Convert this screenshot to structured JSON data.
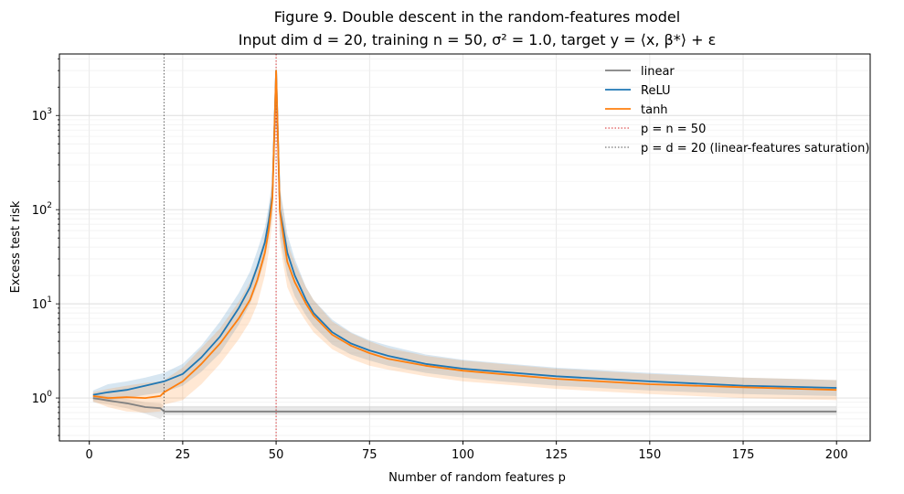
{
  "chart_data": {
    "type": "line",
    "title_line1": "Figure 9.  Double descent in the random-features model",
    "title_line2": "Input dim d = 20, training n = 50, σ² = 1.0, target y = ⟨x, β*⟩ + ε",
    "xlabel": "Number of random features  p",
    "ylabel": "Excess test risk",
    "xlim": [
      -8,
      209
    ],
    "ylim": [
      0.35,
      4500
    ],
    "yscale": "log",
    "grid": true,
    "legend_placement": "upper-right",
    "x_ticks": [
      0,
      25,
      50,
      75,
      100,
      125,
      150,
      175,
      200
    ],
    "y_ticks": [
      {
        "value": 1,
        "base": "10",
        "exp": "0"
      },
      {
        "value": 10,
        "base": "10",
        "exp": "1"
      },
      {
        "value": 100,
        "base": "10",
        "exp": "2"
      },
      {
        "value": 1000,
        "base": "10",
        "exp": "3"
      }
    ],
    "vlines": [
      {
        "x": 50,
        "color": "#d62728",
        "label": "p = n = 50"
      },
      {
        "x": 20,
        "color": "#555555",
        "label": "p = d = 20  (linear-features saturation)"
      }
    ],
    "series": [
      {
        "name": "linear",
        "color": "#808080",
        "x": [
          1,
          5,
          10,
          15,
          19,
          20,
          200
        ],
        "y": [
          1.0,
          0.94,
          0.88,
          0.8,
          0.78,
          0.72,
          0.72
        ],
        "band_low": [
          0.9,
          0.85,
          0.78,
          0.68,
          0.6,
          0.66,
          0.66
        ],
        "band_high": [
          1.1,
          1.04,
          0.98,
          0.9,
          0.88,
          0.82,
          0.82
        ]
      },
      {
        "name": "ReLU",
        "color": "#1f77b4",
        "x": [
          1,
          5,
          10,
          15,
          20,
          25,
          30,
          35,
          40,
          43,
          45,
          47,
          48,
          49,
          50,
          51,
          52,
          53,
          55,
          58,
          60,
          65,
          70,
          75,
          80,
          90,
          100,
          110,
          125,
          150,
          175,
          200
        ],
        "y": [
          1.08,
          1.15,
          1.22,
          1.35,
          1.5,
          1.8,
          2.7,
          4.5,
          9,
          15,
          25,
          45,
          75,
          140,
          3000,
          100,
          60,
          35,
          20,
          11,
          8,
          5.0,
          3.8,
          3.2,
          2.8,
          2.3,
          2.05,
          1.9,
          1.7,
          1.5,
          1.35,
          1.28
        ],
        "band_low": [
          0.95,
          0.95,
          1.0,
          1.08,
          1.15,
          1.35,
          1.9,
          3.0,
          6.0,
          10,
          16,
          30,
          50,
          90,
          1200,
          55,
          32,
          20,
          12,
          7.5,
          5.8,
          3.7,
          2.9,
          2.5,
          2.2,
          1.85,
          1.65,
          1.5,
          1.35,
          1.2,
          1.1,
          1.05
        ],
        "band_high": [
          1.2,
          1.4,
          1.5,
          1.65,
          1.85,
          2.3,
          3.6,
          6.5,
          13,
          22,
          37,
          65,
          110,
          210,
          3100,
          170,
          100,
          55,
          30,
          15,
          11,
          6.8,
          5.0,
          4.1,
          3.6,
          2.9,
          2.55,
          2.35,
          2.1,
          1.85,
          1.65,
          1.55
        ]
      },
      {
        "name": "tanh",
        "color": "#ff7f0e",
        "x": [
          1,
          5,
          10,
          15,
          19,
          20,
          25,
          30,
          35,
          40,
          43,
          45,
          47,
          48,
          49,
          50,
          51,
          52,
          53,
          55,
          58,
          60,
          65,
          70,
          75,
          80,
          90,
          100,
          110,
          125,
          150,
          175,
          200
        ],
        "y": [
          1.05,
          1.0,
          1.02,
          1.0,
          1.05,
          1.15,
          1.5,
          2.3,
          3.8,
          7,
          11,
          18,
          35,
          60,
          130,
          3000,
          95,
          50,
          28,
          17,
          10,
          7.5,
          4.7,
          3.6,
          3.0,
          2.6,
          2.2,
          1.95,
          1.8,
          1.6,
          1.4,
          1.3,
          1.22
        ],
        "band_low": [
          0.92,
          0.8,
          0.72,
          0.7,
          0.72,
          0.85,
          0.95,
          1.4,
          2.3,
          4.2,
          6.5,
          10,
          20,
          35,
          75,
          900,
          45,
          25,
          15,
          10,
          6.5,
          5.0,
          3.3,
          2.6,
          2.2,
          2.0,
          1.7,
          1.5,
          1.4,
          1.25,
          1.1,
          1.0,
          0.95
        ],
        "band_high": [
          1.15,
          1.25,
          1.35,
          1.45,
          1.5,
          1.55,
          2.1,
          3.4,
          5.5,
          10.5,
          17,
          27,
          52,
          90,
          200,
          3100,
          160,
          90,
          45,
          27,
          15,
          11,
          6.5,
          4.9,
          4.0,
          3.4,
          2.8,
          2.5,
          2.3,
          2.05,
          1.8,
          1.65,
          1.55
        ]
      }
    ]
  }
}
